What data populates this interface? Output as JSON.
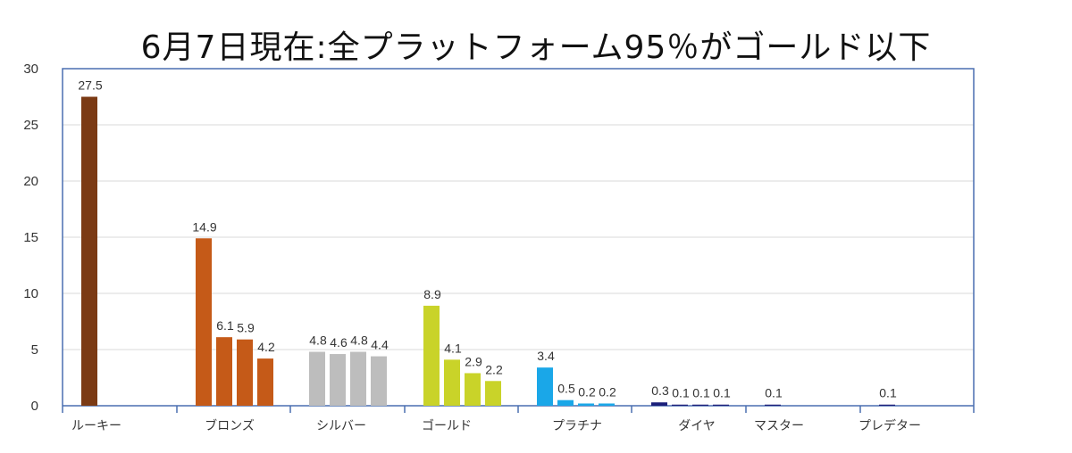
{
  "chart_data": {
    "type": "bar",
    "title": "6月7日現在:全プラットフォーム95％がゴールド以下",
    "xlabel": "",
    "ylabel": "",
    "ylim": [
      0,
      30
    ],
    "yticks": [
      0,
      5,
      10,
      15,
      20,
      25,
      30
    ],
    "grid": true,
    "categories": [
      "ルーキー",
      "ブロンズ",
      "シルバー",
      "ゴールド",
      "プラチナ",
      "ダイヤ",
      "マスター",
      "プレデター"
    ],
    "groups": [
      {
        "category": "ルーキー",
        "values": [
          27.5
        ],
        "labels": [
          "27.5"
        ],
        "colors": [
          "#7b3a14"
        ]
      },
      {
        "category": "ブロンズ",
        "values": [
          14.9,
          6.1,
          5.9,
          4.2
        ],
        "labels": [
          "14.9",
          "6.1",
          "5.9",
          "4.2"
        ],
        "colors": [
          "#c55a18",
          "#c55a18",
          "#c55a18",
          "#c55a18"
        ]
      },
      {
        "category": "シルバー",
        "values": [
          4.8,
          4.6,
          4.8,
          4.4
        ],
        "labels": [
          "4.8",
          "4.6",
          "4.8",
          "4.4"
        ],
        "colors": [
          "#bdbdbd",
          "#bdbdbd",
          "#bdbdbd",
          "#bdbdbd"
        ]
      },
      {
        "category": "ゴールド",
        "values": [
          8.9,
          4.1,
          2.9,
          2.2
        ],
        "labels": [
          "8.9",
          "4.1",
          "2.9",
          "2.2"
        ],
        "colors": [
          "#c9d329",
          "#c9d329",
          "#c9d329",
          "#c9d329"
        ]
      },
      {
        "category": "プラチナ",
        "values": [
          3.4,
          0.5,
          0.2,
          0.2
        ],
        "labels": [
          "3.4",
          "0.5",
          "0.2",
          "0.2"
        ],
        "colors": [
          "#1aa7e8",
          "#1aa7e8",
          "#1aa7e8",
          "#1aa7e8"
        ]
      },
      {
        "category": "ダイヤ",
        "values": [
          0.3,
          0.1,
          0.1,
          0.1
        ],
        "labels": [
          "0.3",
          "0.1",
          "0.1",
          "0.1"
        ],
        "colors": [
          "#1b1f7a",
          "#1b1f7a",
          "#1b1f7a",
          "#1b1f7a"
        ]
      },
      {
        "category": "マスター",
        "values": [
          0.1
        ],
        "labels": [
          "0.1"
        ],
        "colors": [
          "#1b1f7a"
        ]
      },
      {
        "category": "プレデター",
        "values": [
          0.1
        ],
        "labels": [
          "0.1"
        ],
        "colors": [
          "#1b1f7a"
        ]
      }
    ],
    "colors": {
      "grid": "#d9d9d9",
      "frame": "#4a6fb0",
      "baseline": "#4a6fb0"
    }
  }
}
